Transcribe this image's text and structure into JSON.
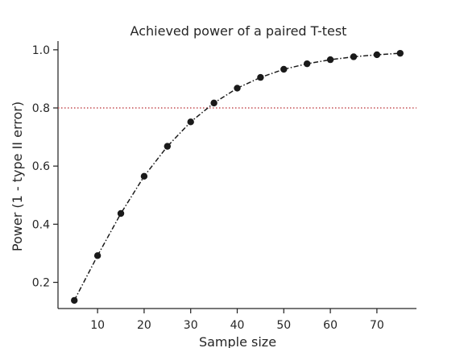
{
  "chart_data": {
    "type": "line",
    "title": "Achieved power of a paired T-test",
    "xlabel": "Sample size",
    "ylabel": "Power (1 - type II error)",
    "xlim": [
      1.5,
      78.5
    ],
    "ylim": [
      0.11,
      1.03
    ],
    "xticks": [
      10,
      20,
      30,
      40,
      50,
      60,
      70
    ],
    "yticks": [
      0.2,
      0.4,
      0.6,
      0.8,
      1.0
    ],
    "ytick_labels": [
      "0.2",
      "0.4",
      "0.6",
      "0.8",
      "1.0"
    ],
    "grid": false,
    "reference_line": {
      "y": 0.8,
      "color": "#c44e52",
      "style": "dotted"
    },
    "series": [
      {
        "color": "#1a1a1a",
        "line_style": "dashdot",
        "marker": "circle",
        "x": [
          5,
          10,
          15,
          20,
          25,
          30,
          35,
          40,
          45,
          50,
          55,
          60,
          65,
          70,
          75
        ],
        "y": [
          0.138,
          0.292,
          0.437,
          0.565,
          0.668,
          0.752,
          0.817,
          0.868,
          0.905,
          0.933,
          0.952,
          0.966,
          0.976,
          0.983,
          0.988
        ]
      }
    ]
  }
}
